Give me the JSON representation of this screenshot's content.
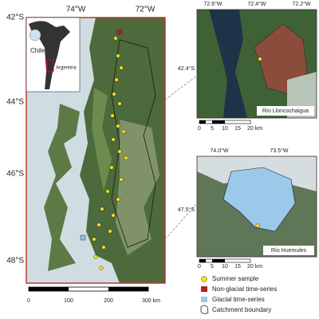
{
  "main_map": {
    "lat_labels": [
      "42°S",
      "44°S",
      "46°S",
      "48°S"
    ],
    "lon_labels": [
      "74°W",
      "72°W"
    ],
    "inset_labels": [
      "Chile",
      "Argentina"
    ],
    "scale_labels": [
      "0",
      "100",
      "200",
      "300 km"
    ]
  },
  "panels": [
    {
      "lon_labels": [
        "72.6°W",
        "72.4°W",
        "72.2°W"
      ],
      "lat_label": "42.4°S",
      "caption": "Río Lloncochaigua",
      "scale_labels": [
        "0",
        "5",
        "10",
        "15",
        "20 km"
      ]
    },
    {
      "lon_labels": [
        "74.0°W",
        "73.5°W"
      ],
      "lat_label": "47.5°S",
      "caption": "Río Huemules",
      "scale_labels": [
        "0",
        "5",
        "10",
        "15",
        "20 km"
      ]
    }
  ],
  "legend": [
    "Summer sample",
    "Non-glacial time-series",
    "Glacial time-series",
    "Catchment boundary"
  ]
}
